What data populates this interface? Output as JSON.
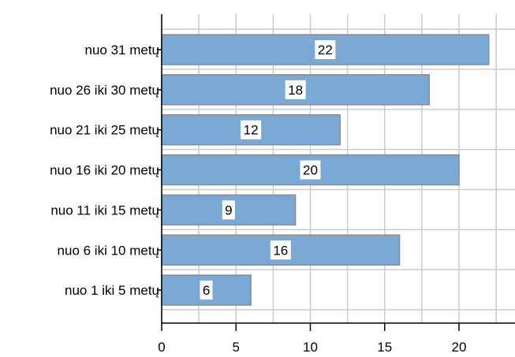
{
  "chart_data": {
    "type": "bar",
    "orientation": "horizontal",
    "title": "",
    "xlabel": "",
    "ylabel": "",
    "categories": [
      "nuo 31 metų",
      "nuo 26 iki 30 metų",
      "nuo 21 iki 25 metų",
      "nuo 16 iki 20 metų",
      "nuo 11 iki 15 metų",
      "nuo 6 iki 10 metų",
      "nuo 1 iki 5 metų"
    ],
    "values": [
      22,
      18,
      12,
      20,
      9,
      16,
      6
    ],
    "xlim": [
      0,
      24
    ],
    "xticks": [
      0,
      5,
      10,
      15,
      20
    ],
    "grid": true,
    "legend": "none",
    "colors": {
      "bar_fill": "#7aa9d6",
      "bar_stroke": "#8c8c8c",
      "grid": "#cccccc",
      "axis": "#000000",
      "label_bg": "#ffffff"
    }
  }
}
